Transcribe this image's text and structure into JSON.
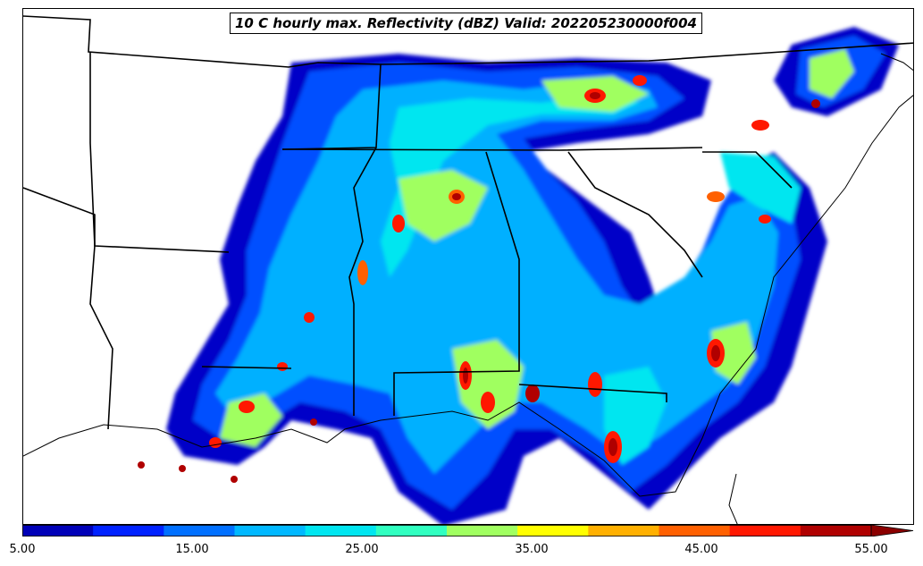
{
  "title": "10 C hourly max. Reflectivity (dBZ) Valid: 202205230000f004",
  "colorbar": {
    "colors": [
      "#0000b8",
      "#0022ff",
      "#0070ff",
      "#00b8ff",
      "#00e6f0",
      "#30ffc0",
      "#a0ff60",
      "#ffff00",
      "#ffb000",
      "#ff6000",
      "#ff1800",
      "#b00000"
    ],
    "extend_color": "#8b0000",
    "tick_labels": [
      "5.00",
      "15.00",
      "25.00",
      "35.00",
      "45.00",
      "55.00"
    ]
  }
}
